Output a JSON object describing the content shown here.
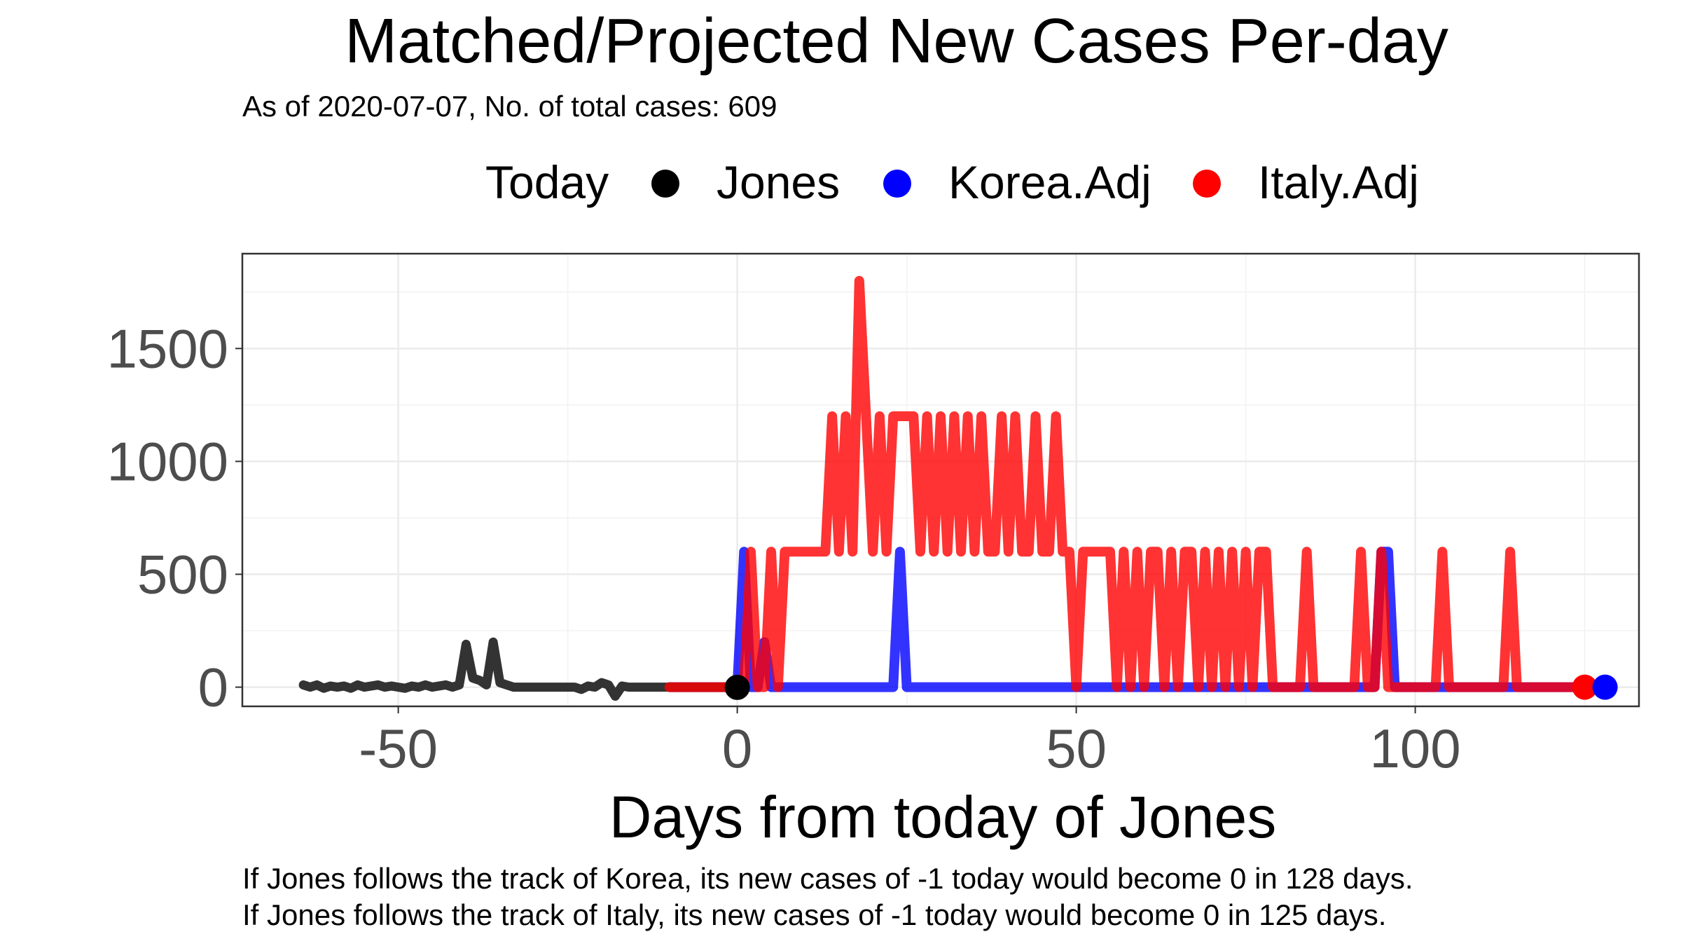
{
  "chart_data": {
    "type": "line",
    "title": "Matched/Projected New Cases Per-day",
    "subtitle": "As of 2020-07-07, No. of total cases: 609",
    "xlabel": "Days from today of Jones",
    "ylabel": "",
    "xlim": [
      -73,
      133
    ],
    "ylim": [
      -85,
      1920
    ],
    "x_ticks": [
      -50,
      0,
      50,
      100
    ],
    "x_tick_labels": [
      "-50",
      "0",
      "50",
      "100"
    ],
    "y_ticks": [
      0,
      500,
      1000,
      1500
    ],
    "y_tick_labels": [
      "0",
      "500",
      "1000",
      "1500"
    ],
    "grid": true,
    "legend": {
      "title": "Today",
      "position": "top",
      "entries": [
        {
          "label": "Jones",
          "color": "#000000"
        },
        {
          "label": "Korea.Adj",
          "color": "#0000ff"
        },
        {
          "label": "Italy.Adj",
          "color": "#ff0000"
        }
      ]
    },
    "series": [
      {
        "name": "Jones",
        "color": "#333333",
        "x": [
          -64,
          -63,
          -62,
          -61,
          -60,
          -59,
          -58,
          -57,
          -56,
          -55,
          -54,
          -53,
          -52,
          -51,
          -50,
          -49,
          -48,
          -47,
          -46,
          -45,
          -44,
          -43,
          -42,
          -41,
          -40,
          -39,
          -38,
          -37,
          -36,
          -35,
          -34,
          -33,
          -32,
          -31,
          -30,
          -29,
          -28,
          -27,
          -26,
          -25,
          -24,
          -23,
          -22,
          -21,
          -20,
          -19,
          -18,
          -17,
          -16,
          -15,
          -14,
          -13,
          -12,
          -11,
          -10,
          -9,
          -8,
          -7,
          -6,
          -5,
          -4,
          -3,
          -2,
          -1,
          0
        ],
        "y": [
          10,
          0,
          10,
          -5,
          5,
          0,
          5,
          -5,
          10,
          0,
          5,
          10,
          0,
          5,
          0,
          -5,
          5,
          0,
          10,
          0,
          5,
          10,
          0,
          10,
          190,
          40,
          30,
          10,
          200,
          20,
          10,
          0,
          0,
          0,
          0,
          0,
          0,
          0,
          0,
          0,
          0,
          -10,
          5,
          0,
          20,
          10,
          -40,
          5,
          0,
          0,
          0,
          0,
          0,
          0,
          0,
          0,
          0,
          0,
          0,
          0,
          0,
          0,
          0,
          0,
          -1
        ]
      },
      {
        "name": "Korea.Adj",
        "color": "#0000ff",
        "x": [
          -10,
          -9,
          -8,
          -7,
          -6,
          -5,
          -4,
          -3,
          -2,
          -1,
          0,
          1,
          2,
          3,
          4,
          5,
          6,
          7,
          8,
          9,
          10,
          11,
          12,
          13,
          14,
          15,
          16,
          17,
          18,
          19,
          20,
          21,
          22,
          23,
          24,
          25,
          26,
          27,
          28,
          29,
          30,
          35,
          40,
          45,
          50,
          55,
          60,
          65,
          70,
          75,
          80,
          85,
          90,
          94,
          95,
          96,
          97,
          100,
          105,
          110,
          115,
          120,
          125,
          128
        ],
        "y": [
          0,
          0,
          0,
          0,
          0,
          0,
          0,
          0,
          0,
          0,
          0,
          600,
          0,
          0,
          200,
          0,
          0,
          0,
          0,
          0,
          0,
          0,
          0,
          0,
          0,
          0,
          0,
          0,
          0,
          0,
          0,
          0,
          0,
          0,
          600,
          0,
          0,
          0,
          0,
          0,
          0,
          0,
          0,
          0,
          0,
          0,
          0,
          0,
          0,
          0,
          0,
          0,
          0,
          0,
          600,
          600,
          0,
          0,
          0,
          0,
          0,
          0,
          0,
          0
        ]
      },
      {
        "name": "Italy.Adj",
        "color": "#ff0000",
        "x": [
          -10,
          -9,
          -8,
          -7,
          -6,
          -5,
          -4,
          -3,
          -2,
          -1,
          0,
          1,
          2,
          3,
          4,
          5,
          6,
          7,
          8,
          9,
          10,
          11,
          12,
          13,
          14,
          15,
          16,
          17,
          18,
          19,
          20,
          21,
          22,
          23,
          24,
          25,
          26,
          27,
          28,
          29,
          30,
          31,
          32,
          33,
          34,
          35,
          36,
          37,
          38,
          39,
          40,
          41,
          42,
          43,
          44,
          45,
          46,
          47,
          48,
          49,
          50,
          51,
          52,
          53,
          54,
          55,
          56,
          57,
          58,
          59,
          60,
          61,
          62,
          63,
          64,
          65,
          66,
          67,
          68,
          69,
          70,
          71,
          72,
          73,
          74,
          75,
          76,
          77,
          78,
          79,
          80,
          81,
          82,
          83,
          84,
          85,
          86,
          87,
          88,
          89,
          90,
          91,
          92,
          93,
          94,
          95,
          96,
          97,
          98,
          99,
          100,
          101,
          102,
          103,
          104,
          105,
          106,
          107,
          108,
          109,
          110,
          111,
          112,
          113,
          114,
          115,
          116,
          117,
          118,
          119,
          120,
          121,
          122,
          123,
          124,
          125
        ],
        "y": [
          0,
          0,
          0,
          0,
          0,
          0,
          0,
          0,
          0,
          0,
          0,
          0,
          600,
          0,
          0,
          600,
          0,
          600,
          600,
          600,
          600,
          600,
          600,
          600,
          1200,
          600,
          1200,
          600,
          1800,
          1200,
          600,
          1200,
          600,
          1200,
          1200,
          1200,
          1200,
          600,
          1200,
          600,
          1200,
          600,
          1200,
          600,
          1200,
          600,
          1200,
          600,
          600,
          1200,
          600,
          1200,
          600,
          600,
          1200,
          600,
          600,
          1200,
          600,
          600,
          0,
          600,
          600,
          600,
          600,
          600,
          0,
          600,
          0,
          600,
          0,
          600,
          600,
          0,
          600,
          0,
          600,
          600,
          0,
          600,
          0,
          600,
          0,
          600,
          0,
          600,
          0,
          600,
          600,
          0,
          0,
          0,
          0,
          0,
          600,
          0,
          0,
          0,
          0,
          0,
          0,
          0,
          600,
          0,
          0,
          600,
          0,
          0,
          0,
          0,
          0,
          0,
          0,
          0,
          600,
          0,
          0,
          0,
          0,
          0,
          0,
          0,
          0,
          0,
          600,
          0,
          0,
          0,
          0,
          0,
          0,
          0,
          0,
          0,
          0,
          0
        ]
      }
    ],
    "end_points": [
      {
        "series": "Jones",
        "x": 0,
        "y": -1,
        "color": "#000000"
      },
      {
        "series": "Italy.Adj",
        "x": 125,
        "y": 0,
        "color": "#ff0000"
      },
      {
        "series": "Korea.Adj",
        "x": 128,
        "y": 0,
        "color": "#0000ff"
      }
    ],
    "annotations": [
      "If Jones follows the track of Korea, its new cases of -1 today would become 0 in 128 days.",
      "If Jones follows the track of Italy, its new cases of -1 today would become 0 in 125 days."
    ]
  }
}
